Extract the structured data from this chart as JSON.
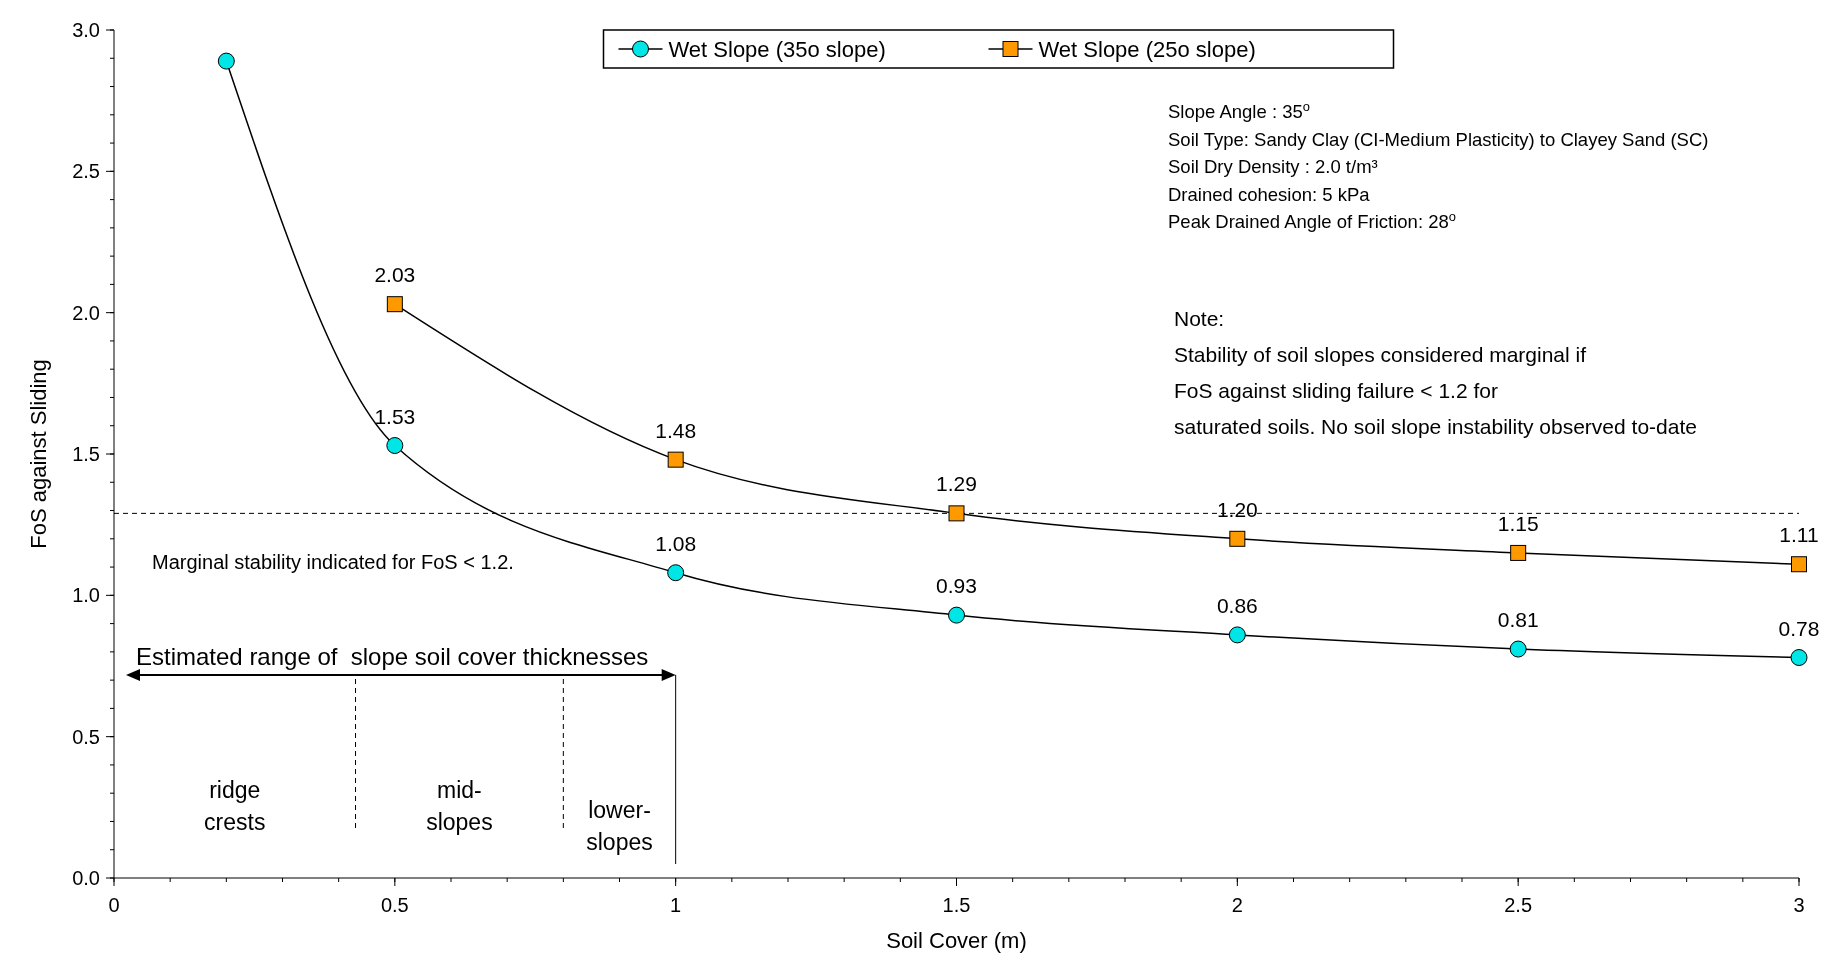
{
  "chart_data": {
    "type": "line",
    "xlabel": "Soil Cover (m)",
    "ylabel": "FoS against Sliding",
    "x": [
      0.2,
      0.5,
      1,
      1.5,
      2,
      2.5,
      3
    ],
    "xlim": [
      0,
      3
    ],
    "xticks": [
      0,
      0.5,
      1,
      1.5,
      2,
      2.5,
      3
    ],
    "ylim": [
      0,
      3
    ],
    "yticks": [
      {
        "value": 0,
        "label": "0.0"
      },
      {
        "value": 0.5,
        "label": "0.5"
      },
      {
        "value": 1,
        "label": "1.0"
      },
      {
        "value": 1.5,
        "label": "1.5"
      },
      {
        "value": 2,
        "label": "2.0"
      },
      {
        "value": 2.5,
        "label": "2.5"
      },
      {
        "value": 3,
        "label": "3.0"
      }
    ],
    "series": [
      {
        "name": "Wet Slope (35o slope)",
        "color": "#00e5e5",
        "marker": "circle",
        "values": [
          2.89,
          1.53,
          1.08,
          0.93,
          0.86,
          0.81,
          0.78
        ],
        "value_labels": [
          null,
          "1.53",
          "1.08",
          "0.93",
          "0.86",
          "0.81",
          "0.78"
        ]
      },
      {
        "name": "Wet Slope (25o slope)",
        "color": "#ff9900",
        "marker": "square",
        "values": [
          null,
          2.03,
          1.48,
          1.29,
          1.2,
          1.15,
          1.11
        ],
        "value_labels": [
          null,
          "2.03",
          "1.48",
          "1.29",
          "1.20",
          "1.15",
          "1.11"
        ]
      }
    ],
    "legend": "top",
    "grid": false,
    "ref_lines": [
      {
        "axis": "y",
        "value": 1.29,
        "label": "Marginal stability indicated for FoS < 1.2.",
        "line_style": "dashed"
      },
      {
        "axis": "x",
        "value": 0.43,
        "line_style": "dashed"
      },
      {
        "axis": "x",
        "value": 0.8,
        "line_style": "dashed"
      },
      {
        "axis": "x",
        "value": 1,
        "line_style": "solid"
      }
    ],
    "annotations": [
      "Slope Angle : 35$^{o}$",
      "Soil Type: Sandy Clay (CI-Medium Plasticity) to Clayey Sand (SC)",
      "Soil Dry Density : 2.0 t/m³",
      "Drained cohesion: 5 kPa",
      "Peak Drained Angle of Friction: 28$^{o}$",
      "Note:",
      "Stability of soil slopes considered marginal if",
      "FoS against sliding failure < 1.2 for",
      "saturated soils. No soil slope instability observed to-date",
      "Estimated range of  slope soil cover thicknesses",
      "ridge\ncrests",
      "mid-\nslopes",
      "lower-\nslopes"
    ]
  }
}
